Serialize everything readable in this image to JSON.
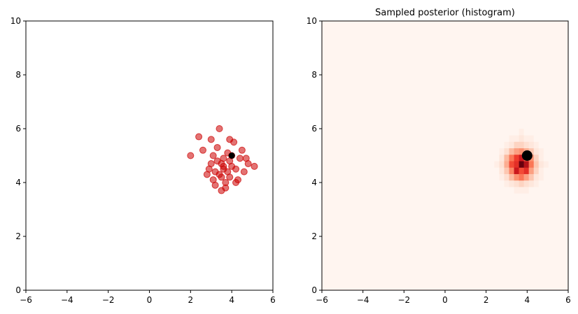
{
  "chart_data": [
    {
      "type": "scatter",
      "x": [
        3.6,
        3.2,
        3.9,
        4.2,
        3.0,
        3.5,
        3.8,
        4.4,
        2.8,
        3.3,
        3.7,
        4.0,
        4.6,
        3.1,
        3.4,
        2.6,
        4.8,
        3.9,
        3.6,
        3.2,
        4.1,
        2.9,
        3.5,
        4.3,
        3.7,
        3.0,
        3.8,
        4.5,
        2.4,
        5.1,
        3.3,
        3.6,
        4.0,
        2.0,
        3.4,
        4.7,
        3.9,
        3.1,
        3.5,
        4.2
      ],
      "y": [
        4.6,
        4.4,
        4.8,
        4.5,
        4.7,
        4.2,
        5.1,
        4.9,
        4.3,
        5.3,
        4.0,
        4.6,
        4.4,
        5.0,
        6.0,
        5.2,
        4.7,
        4.2,
        4.9,
        3.9,
        5.5,
        4.5,
        4.7,
        4.1,
        3.8,
        5.6,
        4.4,
        5.2,
        5.7,
        4.6,
        4.8,
        4.5,
        5.0,
        5.0,
        4.3,
        4.9,
        5.6,
        4.1,
        3.7,
        4.0
      ],
      "color": "#cc0000",
      "point": {
        "x": 4,
        "y": 5,
        "color": "#000000"
      },
      "xlim": [
        -6,
        6
      ],
      "ylim": [
        0,
        10
      ],
      "xticks": [
        {
          "value": -6,
          "label": "−6"
        },
        {
          "value": -4,
          "label": "−4"
        },
        {
          "value": -2,
          "label": "−2"
        },
        0,
        2,
        4,
        6
      ],
      "yticks": [
        0,
        2,
        4,
        6,
        8,
        10
      ]
    },
    {
      "type": "hist2d",
      "title": "Sampled posterior (histogram)",
      "colormap": "Reds",
      "x_edges": [
        2.4,
        2.64,
        2.88,
        3.12,
        3.36,
        3.6,
        3.84,
        4.08,
        4.32,
        4.56,
        4.8,
        5.04,
        5.28
      ],
      "y_edges": [
        3.6,
        3.84,
        4.08,
        4.32,
        4.56,
        4.8,
        5.04,
        5.28,
        5.52,
        5.76,
        6.0
      ],
      "counts": [
        [
          0,
          0,
          0,
          0,
          1,
          1,
          1,
          0,
          0,
          0,
          0,
          0
        ],
        [
          0,
          0,
          1,
          2,
          3,
          4,
          3,
          2,
          1,
          0,
          0,
          0
        ],
        [
          0,
          1,
          3,
          6,
          9,
          11,
          8,
          5,
          2,
          1,
          0,
          0
        ],
        [
          0,
          2,
          5,
          10,
          18,
          14,
          16,
          8,
          4,
          1,
          0,
          0
        ],
        [
          1,
          3,
          7,
          14,
          16,
          24,
          20,
          11,
          5,
          2,
          1,
          0
        ],
        [
          0,
          2,
          6,
          11,
          15,
          18,
          13,
          9,
          4,
          1,
          0,
          0
        ],
        [
          0,
          1,
          3,
          6,
          8,
          9,
          7,
          5,
          2,
          1,
          0,
          0
        ],
        [
          0,
          0,
          1,
          2,
          4,
          4,
          3,
          2,
          1,
          0,
          0,
          0
        ],
        [
          0,
          0,
          0,
          1,
          1,
          2,
          1,
          1,
          0,
          0,
          0,
          0
        ],
        [
          0,
          0,
          0,
          0,
          0,
          1,
          0,
          0,
          0,
          0,
          0,
          0
        ]
      ],
      "point": {
        "x": 4,
        "y": 5,
        "color": "#000000"
      },
      "xlim": [
        -6,
        6
      ],
      "ylim": [
        0,
        10
      ],
      "xticks": [
        {
          "value": -6,
          "label": "−6"
        },
        {
          "value": -4,
          "label": "−4"
        },
        {
          "value": -2,
          "label": "−2"
        },
        0,
        2,
        4,
        6
      ],
      "yticks": [
        0,
        2,
        4,
        6,
        8,
        10
      ]
    }
  ]
}
